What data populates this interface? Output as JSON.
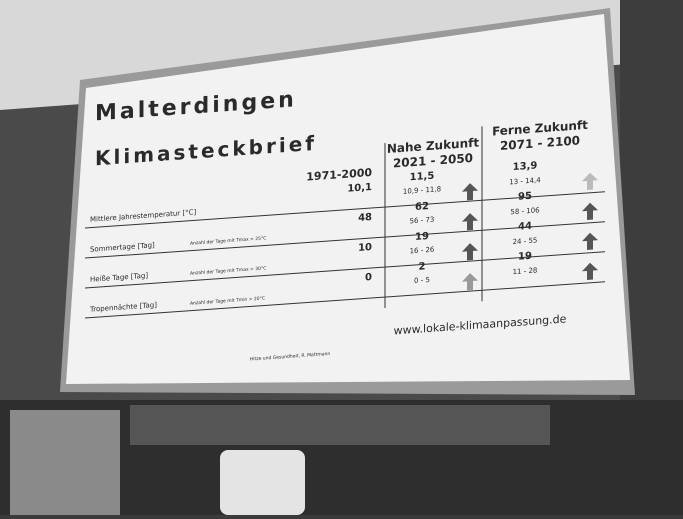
{
  "slide": {
    "title": "Malterdingen",
    "subtitle": "Klimasteckbrief",
    "columns": {
      "past": "1971-2000",
      "near": {
        "name": "Nahe Zukunft",
        "period": "2021 - 2050"
      },
      "far": {
        "name": "Ferne Zukunft",
        "period": "2071 - 2100"
      }
    },
    "rows": [
      {
        "label": "Mittlere Jahrestemperatur [°C]",
        "past": "10,1",
        "near": "11,5",
        "near_range": "10,9  -  11,8",
        "far": "13,9",
        "far_range": "13  -  14,4"
      },
      {
        "label": "Sommertage [Tag]",
        "note": "Anzahl der Tage mit Tmax > 25°C",
        "past": "48",
        "near": "62",
        "near_range": "56  -  73",
        "far": "95",
        "far_range": "58  -  106"
      },
      {
        "label": "Heiße Tage [Tag]",
        "note": "Anzahl der Tage mit Tmax > 30°C",
        "past": "10",
        "near": "19",
        "near_range": "16  -  26",
        "far": "44",
        "far_range": "24  -  55"
      },
      {
        "label": "Tropennächte [Tag]",
        "note": "Anzahl der Tage mit Tmin > 20°C",
        "past": "0",
        "near": "2",
        "near_range": "0  -  5",
        "far": "19",
        "far_range": "11  -  28"
      }
    ],
    "url": "www.lokale-klimaanpassung.de",
    "footer": "Hitze und Gesundheit, R. Mattmann"
  }
}
